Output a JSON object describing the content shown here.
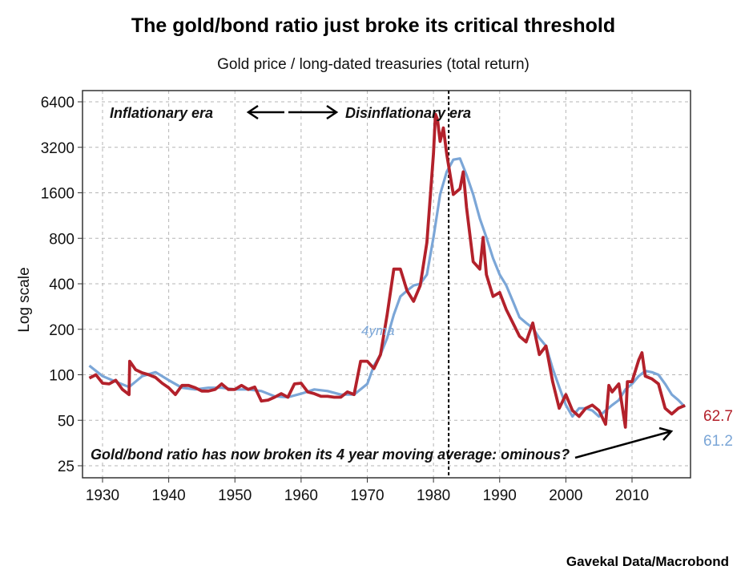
{
  "chart_data": {
    "type": "line",
    "title": "The gold/bond ratio just broke its critical threshold",
    "subtitle": "Gold price / long-dated treasuries (total return)",
    "ylabel": "Log scale",
    "xlabel": "",
    "source": "Gavekal Data/Macrobond",
    "y_scale": "log2",
    "ylim": [
      20,
      7000
    ],
    "xlim": [
      1927,
      2019
    ],
    "yticks": [
      25,
      50,
      100,
      200,
      400,
      800,
      1600,
      3200,
      6400
    ],
    "xticks": [
      1930,
      1940,
      1950,
      1960,
      1970,
      1980,
      1990,
      2000,
      2010
    ],
    "grid": true,
    "colors": {
      "ratio": "#b3212b",
      "ma": "#7ba6d7"
    },
    "series": [
      {
        "key": "ratio",
        "end_label": "62.7",
        "x": [
          1928,
          1929,
          1930,
          1931,
          1932,
          1933,
          1934,
          1934.1,
          1935,
          1936,
          1937,
          1938,
          1939,
          1940,
          1941,
          1942,
          1943,
          1944,
          1945,
          1946,
          1947,
          1948,
          1949,
          1950,
          1951,
          1952,
          1953,
          1954,
          1955,
          1956,
          1957,
          1958,
          1959,
          1960,
          1961,
          1962,
          1963,
          1964,
          1965,
          1966,
          1967,
          1968,
          1969,
          1970,
          1971,
          1972,
          1973,
          1974,
          1975,
          1976,
          1977,
          1978,
          1979,
          1980,
          1980.3,
          1980.6,
          1981,
          1981.5,
          1982,
          1983,
          1984,
          1984.5,
          1985,
          1986,
          1987,
          1987.5,
          1988,
          1989,
          1990,
          1991,
          1992,
          1993,
          1994,
          1995,
          1996,
          1997,
          1998,
          1999,
          2000,
          2001,
          2002,
          2003,
          2004,
          2005,
          2006,
          2006.5,
          2007,
          2008,
          2009,
          2009.3,
          2010,
          2011,
          2011.5,
          2012,
          2013,
          2014,
          2015,
          2016,
          2017,
          2018
        ],
        "y": [
          95,
          100,
          88,
          87,
          92,
          80,
          74,
          123,
          108,
          103,
          100,
          96,
          88,
          82,
          74,
          85,
          85,
          82,
          78,
          78,
          80,
          87,
          80,
          80,
          85,
          80,
          83,
          67,
          68,
          71,
          75,
          71,
          87,
          88,
          77,
          75,
          72,
          72,
          71,
          71,
          77,
          74,
          123,
          123,
          110,
          136,
          250,
          500,
          500,
          360,
          306,
          390,
          750,
          2900,
          5300,
          4900,
          3500,
          4300,
          2900,
          1560,
          1700,
          2200,
          1280,
          560,
          500,
          810,
          460,
          330,
          350,
          270,
          220,
          180,
          165,
          220,
          136,
          155,
          90,
          60,
          74,
          58,
          53,
          60,
          63,
          58,
          47,
          85,
          77,
          87,
          45,
          90,
          90,
          125,
          140,
          98,
          94,
          87,
          60,
          55,
          60,
          62.7
        ]
      },
      {
        "key": "ma",
        "name": "4yma",
        "end_label": "61.2",
        "x": [
          1928,
          1930,
          1932,
          1934,
          1936,
          1938,
          1940,
          1942,
          1944,
          1946,
          1948,
          1950,
          1952,
          1954,
          1956,
          1958,
          1960,
          1962,
          1964,
          1966,
          1968,
          1970,
          1971,
          1972,
          1973,
          1974,
          1975,
          1976,
          1977,
          1978,
          1979,
          1980,
          1981,
          1982,
          1983,
          1984,
          1985,
          1986,
          1987,
          1988,
          1989,
          1990,
          1991,
          1992,
          1993,
          1994,
          1995,
          1996,
          1997,
          1998,
          1999,
          2000,
          2001,
          2002,
          2003,
          2004,
          2005,
          2006,
          2007,
          2008,
          2009,
          2010,
          2011,
          2012,
          2013,
          2014,
          2015,
          2016,
          2017,
          2018
        ],
        "y": [
          115,
          98,
          90,
          83,
          98,
          104,
          92,
          82,
          80,
          82,
          82,
          80,
          80,
          78,
          72,
          71,
          75,
          80,
          78,
          74,
          74,
          87,
          115,
          136,
          175,
          250,
          330,
          360,
          390,
          400,
          460,
          810,
          1560,
          2200,
          2650,
          2700,
          2100,
          1560,
          1080,
          810,
          590,
          460,
          390,
          306,
          240,
          220,
          204,
          175,
          155,
          110,
          83,
          63,
          53,
          60,
          60,
          58,
          53,
          58,
          63,
          68,
          80,
          87,
          98,
          106,
          104,
          100,
          87,
          74,
          68,
          61.2
        ]
      }
    ],
    "vline_year": 1982.3,
    "annotations": {
      "left_era": "Inflationary era",
      "right_era": "Disinflationary era",
      "ma_label": "4yma",
      "note": "Gold/bond ratio has now broken its 4 year moving average: ominous?"
    }
  }
}
